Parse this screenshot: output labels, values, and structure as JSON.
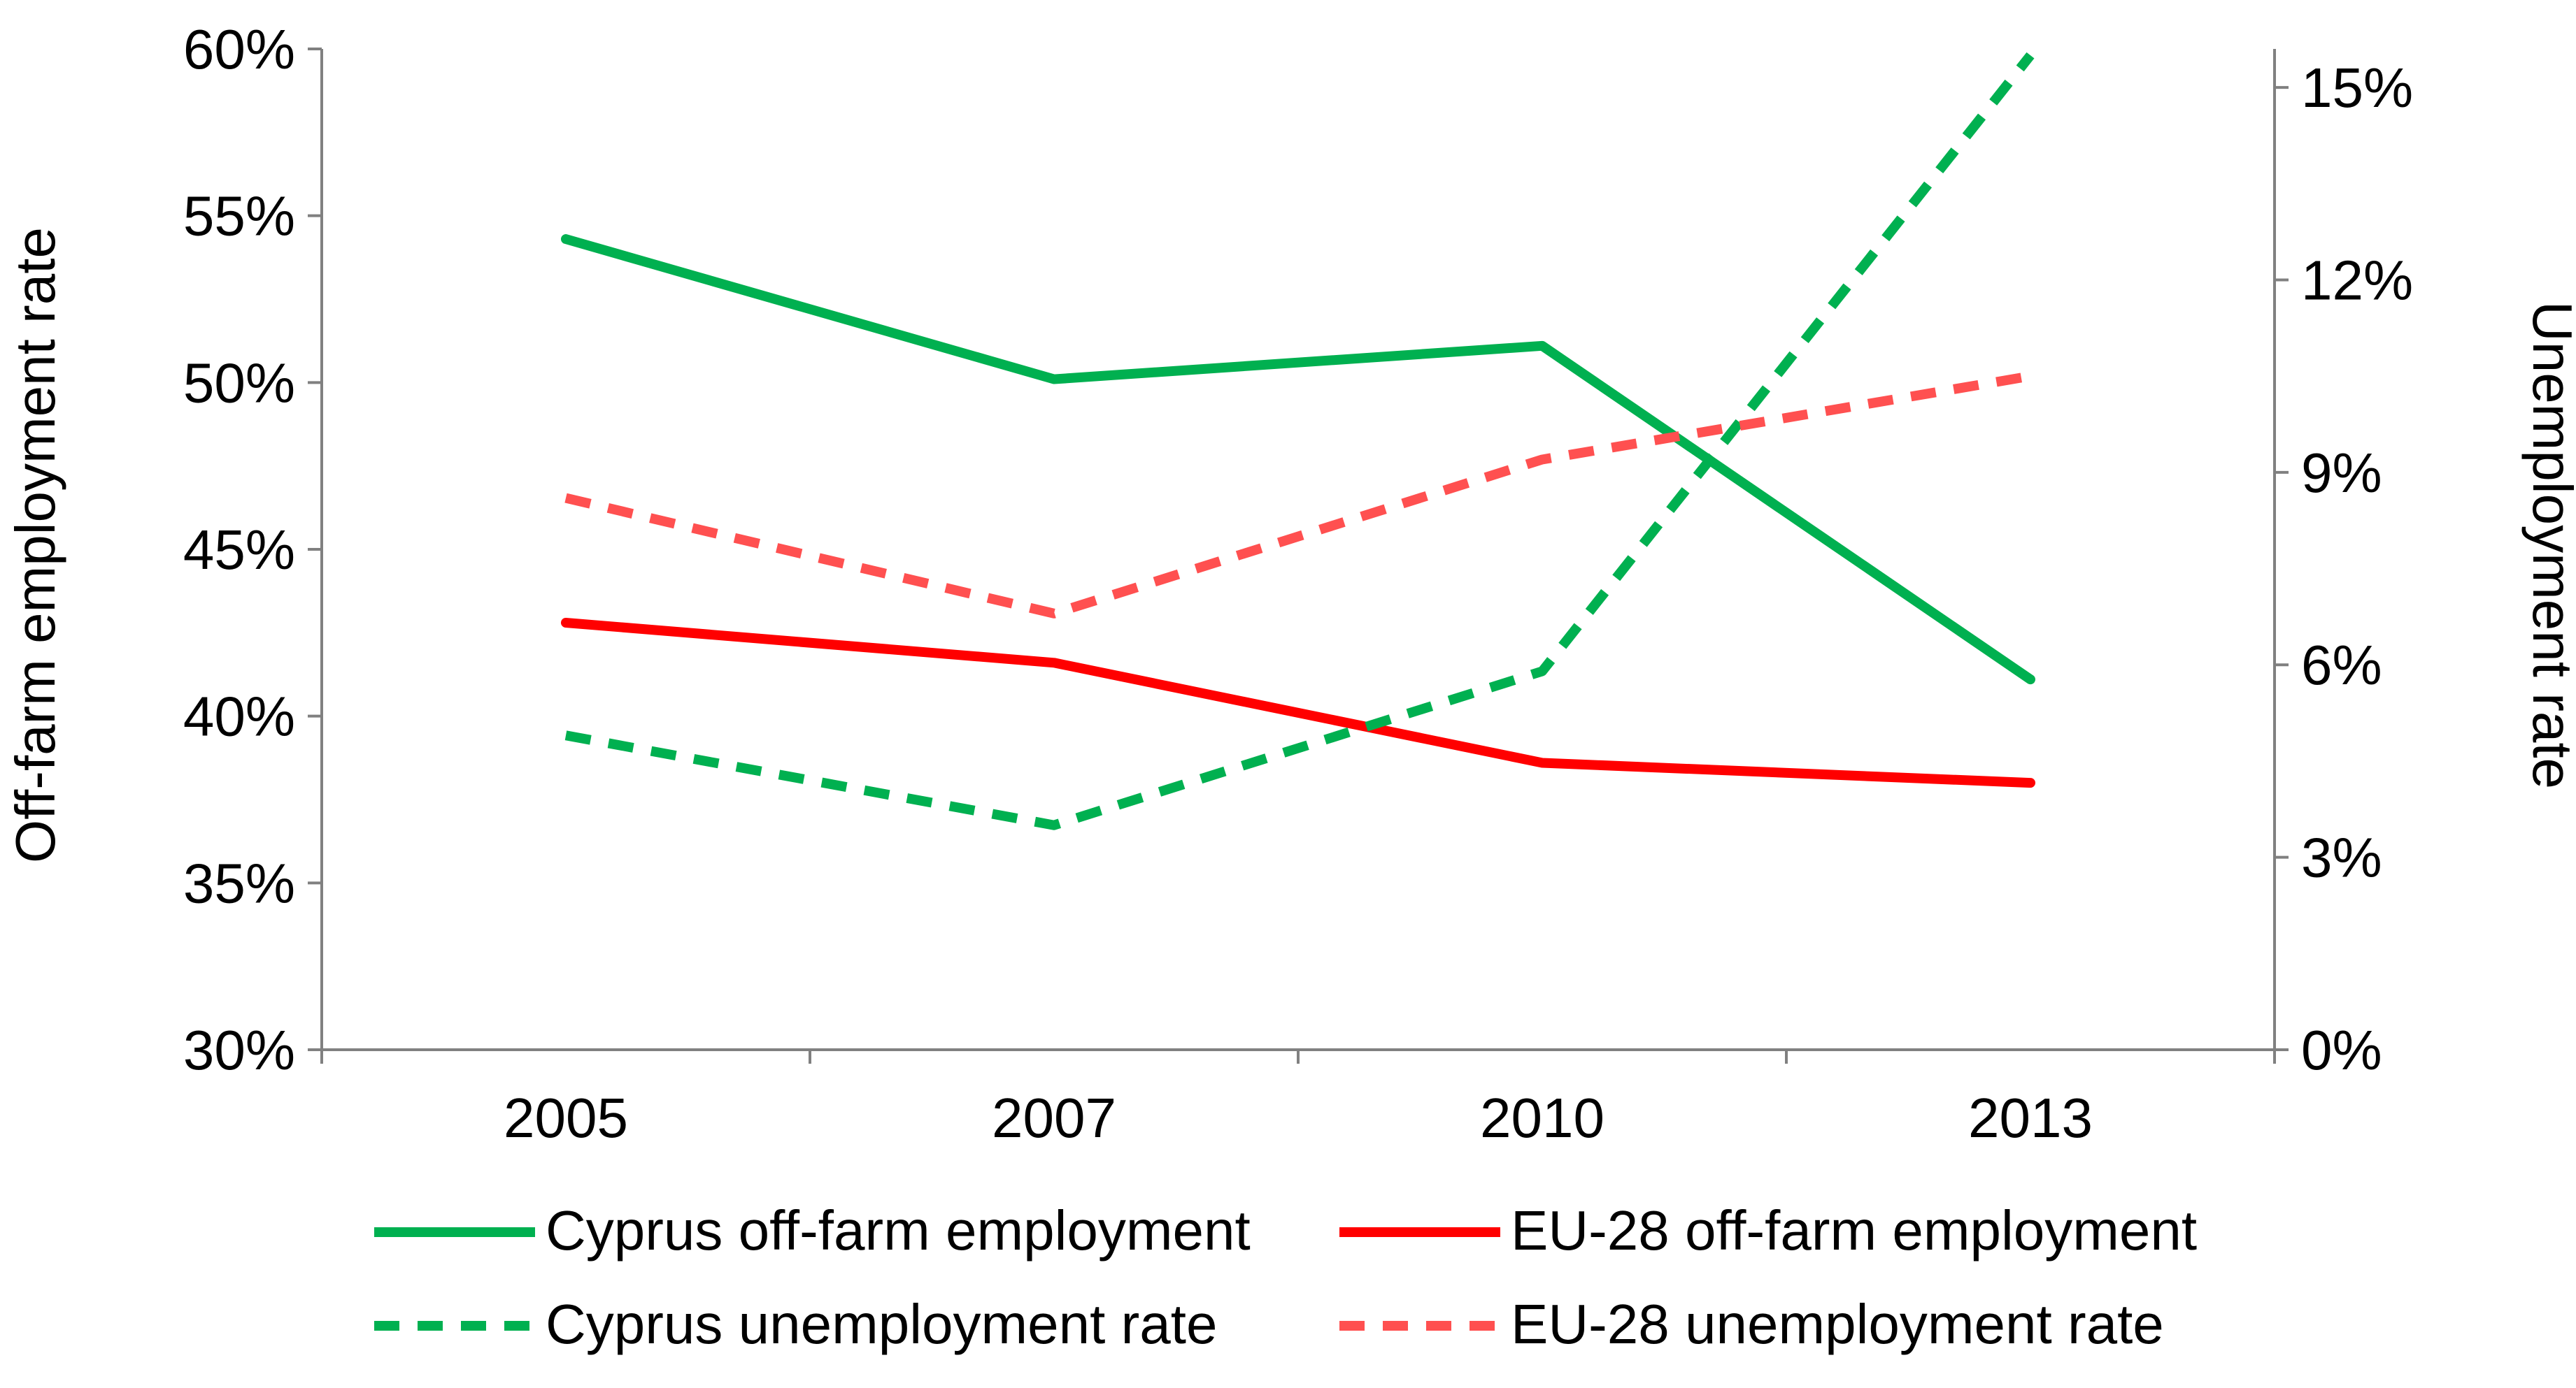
{
  "chart_data": {
    "type": "line",
    "categories": [
      "2005",
      "2007",
      "2010",
      "2013"
    ],
    "left_axis": {
      "label": "Off-farm employment rate",
      "min": 30,
      "max": 60,
      "step": 5,
      "tick_labels": [
        "30%",
        "35%",
        "40%",
        "45%",
        "50%",
        "55%",
        "60%"
      ]
    },
    "right_axis": {
      "label": "Unemployment rate",
      "min": 0,
      "max": 15.6,
      "step": 3,
      "tick_labels": [
        "0%",
        "3%",
        "6%",
        "9%",
        "12%",
        "15%"
      ]
    },
    "series": [
      {
        "name": "Cyprus off-farm employment",
        "axis": "left",
        "values": [
          54.3,
          50.1,
          51.1,
          41.1
        ],
        "color": "#00b050",
        "dashed": false
      },
      {
        "name": "EU-28 off-farm employment",
        "axis": "left",
        "values": [
          42.8,
          41.6,
          38.6,
          38.0
        ],
        "color": "#ff0000",
        "dashed": false
      },
      {
        "name": "Cyprus unemployment rate",
        "axis": "right",
        "values": [
          4.9,
          3.5,
          5.9,
          15.5
        ],
        "color": "#00b050",
        "dashed": true
      },
      {
        "name": "EU-28 unemployment rate",
        "axis": "right",
        "values": [
          8.6,
          6.8,
          9.2,
          10.5
        ],
        "color": "#ff5050",
        "dashed": true
      }
    ],
    "legend_position": "bottom"
  }
}
